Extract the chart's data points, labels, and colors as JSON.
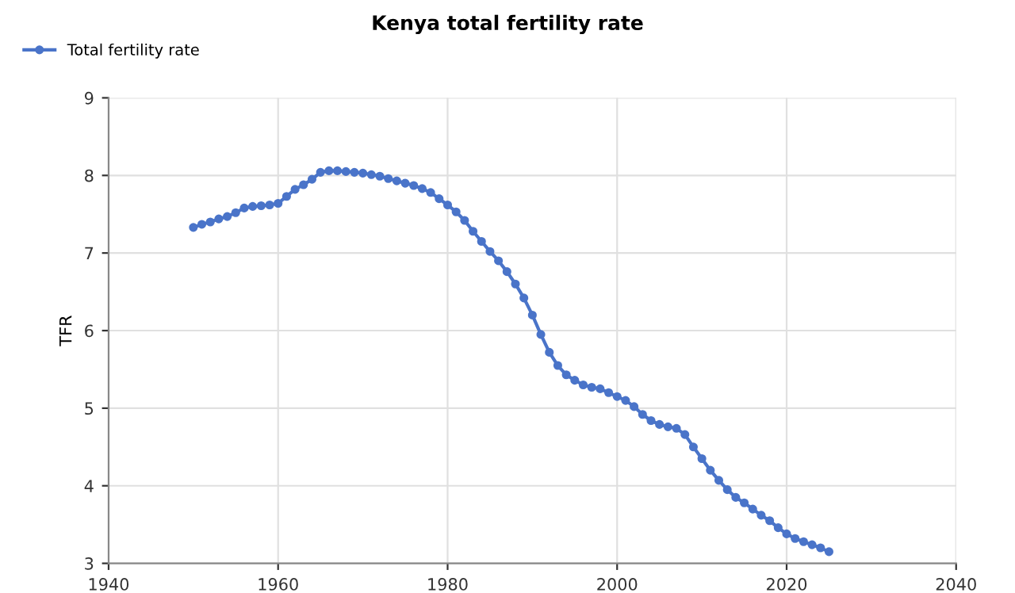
{
  "chart_data": {
    "type": "line",
    "title": "Kenya total fertility rate",
    "ylabel": "TFR",
    "x": [
      1950,
      1951,
      1952,
      1953,
      1954,
      1955,
      1956,
      1957,
      1958,
      1959,
      1960,
      1961,
      1962,
      1963,
      1964,
      1965,
      1966,
      1967,
      1968,
      1969,
      1970,
      1971,
      1972,
      1973,
      1974,
      1975,
      1976,
      1977,
      1978,
      1979,
      1980,
      1981,
      1982,
      1983,
      1984,
      1985,
      1986,
      1987,
      1988,
      1989,
      1990,
      1991,
      1992,
      1993,
      1994,
      1995,
      1996,
      1997,
      1998,
      1999,
      2000,
      2001,
      2002,
      2003,
      2004,
      2005,
      2006,
      2007,
      2008,
      2009,
      2010,
      2011,
      2012,
      2013,
      2014,
      2015,
      2016,
      2017,
      2018,
      2019,
      2020,
      2021,
      2022,
      2023,
      2024,
      2025
    ],
    "series": [
      {
        "name": "Total fertility rate",
        "color": "#4a74c9",
        "values": [
          7.33,
          7.37,
          7.4,
          7.44,
          7.47,
          7.52,
          7.58,
          7.6,
          7.61,
          7.62,
          7.64,
          7.73,
          7.82,
          7.88,
          7.95,
          8.04,
          8.06,
          8.06,
          8.05,
          8.04,
          8.03,
          8.01,
          7.99,
          7.96,
          7.93,
          7.9,
          7.87,
          7.83,
          7.78,
          7.7,
          7.62,
          7.53,
          7.42,
          7.28,
          7.15,
          7.02,
          6.9,
          6.76,
          6.6,
          6.42,
          6.2,
          5.95,
          5.72,
          5.55,
          5.43,
          5.36,
          5.3,
          5.27,
          5.25,
          5.2,
          5.15,
          5.1,
          5.02,
          4.92,
          4.84,
          4.79,
          4.76,
          4.74,
          4.66,
          4.5,
          4.35,
          4.2,
          4.07,
          3.95,
          3.85,
          3.78,
          3.7,
          3.62,
          3.55,
          3.46,
          3.38,
          3.32,
          3.28,
          3.24,
          3.2,
          3.15
        ]
      }
    ],
    "xlim": [
      1940,
      2040
    ],
    "xticks": [
      1940,
      1960,
      1980,
      2000,
      2020,
      2040
    ],
    "ylim": [
      3,
      9
    ],
    "yticks": [
      3,
      4,
      5,
      6,
      7,
      8,
      9
    ],
    "grid": true,
    "legend": "top left",
    "marker": "circle",
    "line_style": "solid"
  }
}
